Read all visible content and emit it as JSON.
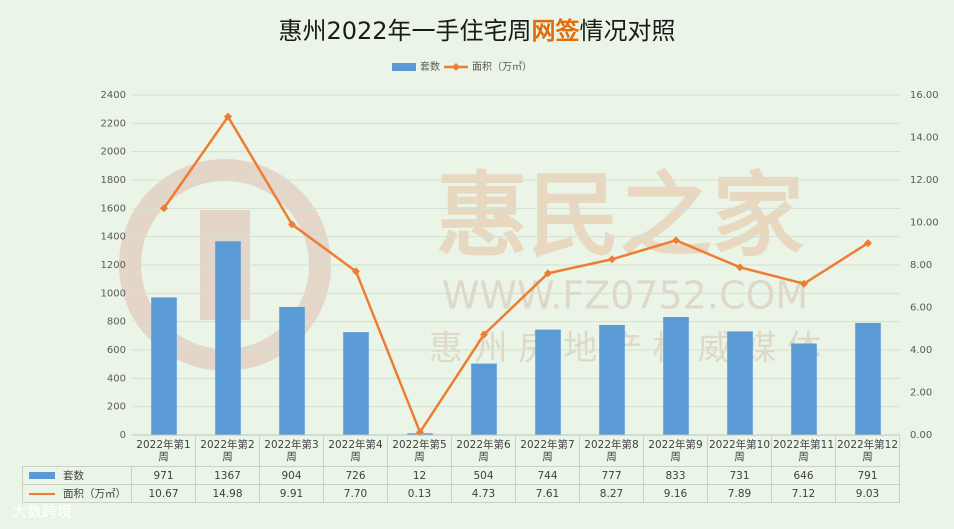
{
  "chart_data": {
    "type": "bar_line",
    "title": [
      "惠州2022年一手住宅周",
      "网签",
      "情况对照"
    ],
    "watermark": [
      "惠民之家",
      "WWW.FZ0752.COM",
      "惠 州 房 地 产 权 威 媒 体"
    ],
    "logo_text": "大数跨境",
    "categories": [
      "2022年第1周",
      "2022年第2周",
      "2022年第3周",
      "2022年第4周",
      "2022年第5周",
      "2022年第6周",
      "2022年第7周",
      "2022年第8周",
      "2022年第9周",
      "2022年第10周",
      "2022年第11周",
      "2022年第12周"
    ],
    "series": [
      {
        "name": "套数",
        "type": "bar",
        "color": "#5b9bd5",
        "values": [
          971,
          1367,
          904,
          726,
          12,
          504,
          744,
          777,
          833,
          731,
          646,
          791
        ]
      },
      {
        "name": "面积（万㎡）",
        "type": "line",
        "axis": "y2",
        "color": "#ed7d31",
        "values": [
          10.67,
          14.98,
          9.91,
          7.7,
          0.13,
          4.73,
          7.61,
          8.27,
          9.16,
          7.89,
          7.12,
          9.03
        ],
        "value_labels": [
          "10.67",
          "14.98",
          "9.91",
          "7.70",
          "0.13",
          "4.73",
          "7.61",
          "8.27",
          "9.16",
          "7.89",
          "7.12",
          "9.03"
        ]
      }
    ],
    "ylim": [
      0,
      2400
    ],
    "yticks": [
      0,
      200,
      400,
      600,
      800,
      1000,
      1200,
      1400,
      1600,
      1800,
      2000,
      2200,
      2400
    ],
    "y2lim": [
      0,
      16
    ],
    "y2ticks": [
      {
        "value": 0,
        "label": "0.00"
      },
      {
        "value": 2,
        "label": "2.00"
      },
      {
        "value": 4,
        "label": "4.00"
      },
      {
        "value": 6,
        "label": "6.00"
      },
      {
        "value": 8,
        "label": "8.00"
      },
      {
        "value": 10,
        "label": "10.00"
      },
      {
        "value": 12,
        "label": "12.00"
      },
      {
        "value": 14,
        "label": "14.00"
      },
      {
        "value": 16,
        "label": "16.00"
      }
    ],
    "grid": true,
    "legend": "top",
    "highlight_color": "#e36c09"
  }
}
